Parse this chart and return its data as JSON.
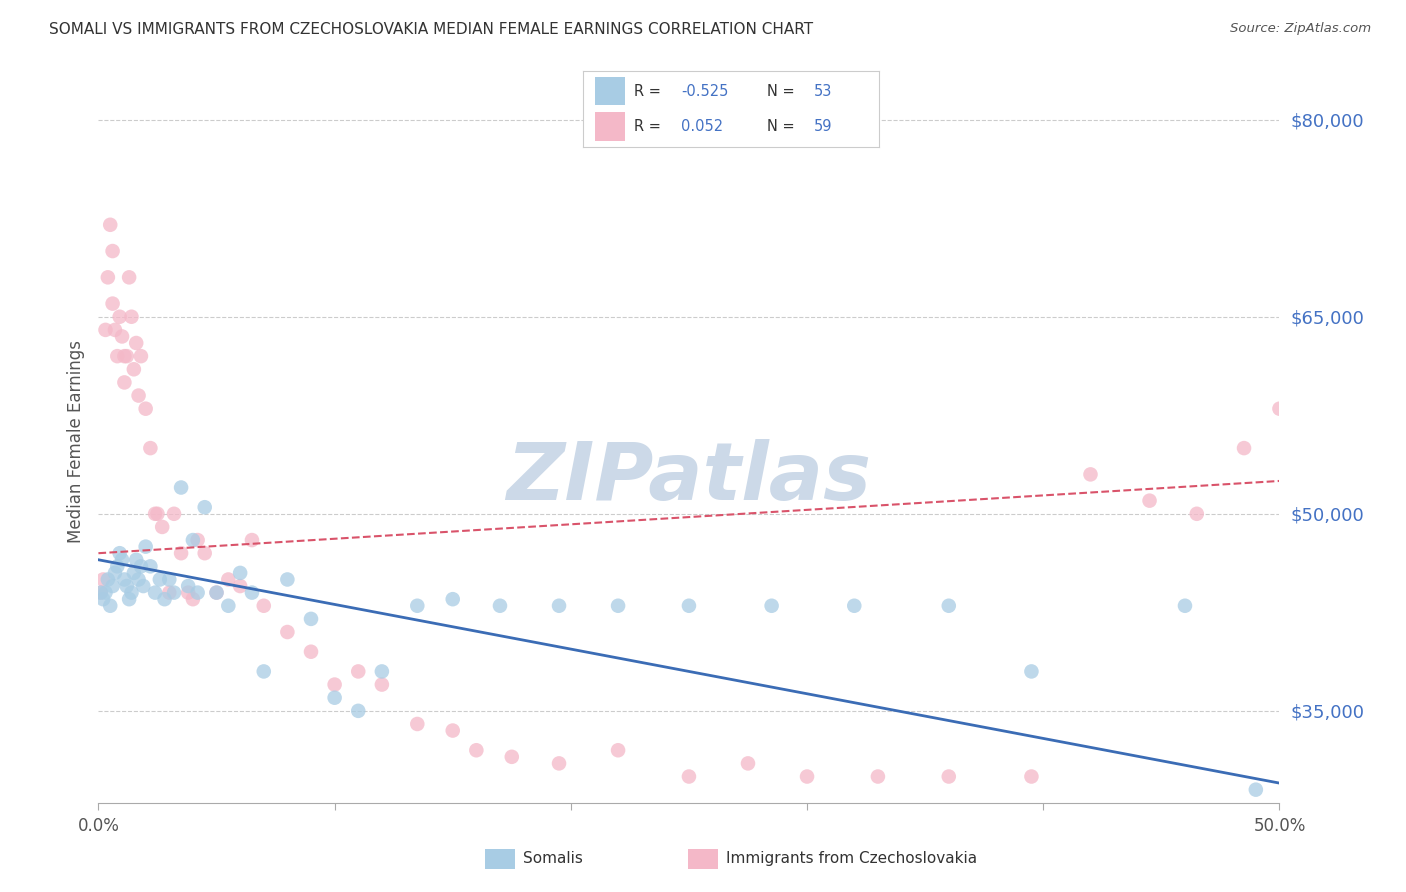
{
  "title": "SOMALI VS IMMIGRANTS FROM CZECHOSLOVAKIA MEDIAN FEMALE EARNINGS CORRELATION CHART",
  "source": "Source: ZipAtlas.com",
  "ylabel": "Median Female Earnings",
  "xlim": [
    0.0,
    0.5
  ],
  "ylim": [
    28000,
    83000
  ],
  "yticks": [
    35000,
    50000,
    65000,
    80000
  ],
  "ytick_labels": [
    "$35,000",
    "$50,000",
    "$65,000",
    "$80,000"
  ],
  "xticks": [
    0.0,
    0.1,
    0.2,
    0.3,
    0.4,
    0.5
  ],
  "xtick_labels": [
    "0.0%",
    "",
    "",
    "",
    "",
    "50.0%"
  ],
  "color_blue": "#a8cce4",
  "color_pink": "#f4b8c8",
  "line_color_blue": "#3b6cb5",
  "line_color_pink": "#d9536a",
  "bg_color": "#ffffff",
  "watermark": "ZIPatlas",
  "watermark_color": "#ccd9e8",
  "label_somali": "Somalis",
  "label_czech": "Immigrants from Czechoslovakia",
  "blue_trend_x0": 0.0,
  "blue_trend_y0": 46500,
  "blue_trend_x1": 0.5,
  "blue_trend_y1": 29500,
  "pink_trend_x0": 0.0,
  "pink_trend_y0": 47000,
  "pink_trend_x1": 0.5,
  "pink_trend_y1": 52500,
  "blue_x": [
    0.001,
    0.002,
    0.003,
    0.004,
    0.005,
    0.006,
    0.007,
    0.008,
    0.009,
    0.01,
    0.011,
    0.012,
    0.013,
    0.014,
    0.015,
    0.016,
    0.017,
    0.018,
    0.019,
    0.02,
    0.022,
    0.024,
    0.026,
    0.028,
    0.03,
    0.032,
    0.035,
    0.038,
    0.04,
    0.042,
    0.045,
    0.05,
    0.055,
    0.06,
    0.065,
    0.07,
    0.08,
    0.09,
    0.1,
    0.11,
    0.12,
    0.135,
    0.15,
    0.17,
    0.195,
    0.22,
    0.25,
    0.285,
    0.32,
    0.36,
    0.395,
    0.46,
    0.49
  ],
  "blue_y": [
    44000,
    43500,
    44000,
    45000,
    43000,
    44500,
    45500,
    46000,
    47000,
    46500,
    45000,
    44500,
    43500,
    44000,
    45500,
    46500,
    45000,
    46000,
    44500,
    47500,
    46000,
    44000,
    45000,
    43500,
    45000,
    44000,
    52000,
    44500,
    48000,
    44000,
    50500,
    44000,
    43000,
    45500,
    44000,
    38000,
    45000,
    42000,
    36000,
    35000,
    38000,
    43000,
    43500,
    43000,
    43000,
    43000,
    43000,
    43000,
    43000,
    43000,
    38000,
    43000,
    29000
  ],
  "pink_x": [
    0.001,
    0.002,
    0.003,
    0.004,
    0.005,
    0.006,
    0.006,
    0.007,
    0.008,
    0.009,
    0.01,
    0.011,
    0.011,
    0.012,
    0.013,
    0.014,
    0.015,
    0.016,
    0.017,
    0.018,
    0.02,
    0.022,
    0.024,
    0.025,
    0.027,
    0.03,
    0.032,
    0.035,
    0.038,
    0.04,
    0.042,
    0.045,
    0.05,
    0.055,
    0.06,
    0.065,
    0.07,
    0.08,
    0.09,
    0.1,
    0.11,
    0.12,
    0.135,
    0.15,
    0.16,
    0.175,
    0.195,
    0.22,
    0.25,
    0.275,
    0.3,
    0.33,
    0.36,
    0.395,
    0.42,
    0.445,
    0.465,
    0.485,
    0.5
  ],
  "pink_y": [
    44000,
    45000,
    64000,
    68000,
    72000,
    70000,
    66000,
    64000,
    62000,
    65000,
    63500,
    62000,
    60000,
    62000,
    68000,
    65000,
    61000,
    63000,
    59000,
    62000,
    58000,
    55000,
    50000,
    50000,
    49000,
    44000,
    50000,
    47000,
    44000,
    43500,
    48000,
    47000,
    44000,
    45000,
    44500,
    48000,
    43000,
    41000,
    39500,
    37000,
    38000,
    37000,
    34000,
    33500,
    32000,
    31500,
    31000,
    32000,
    30000,
    31000,
    30000,
    30000,
    30000,
    30000,
    53000,
    51000,
    50000,
    55000,
    58000
  ]
}
